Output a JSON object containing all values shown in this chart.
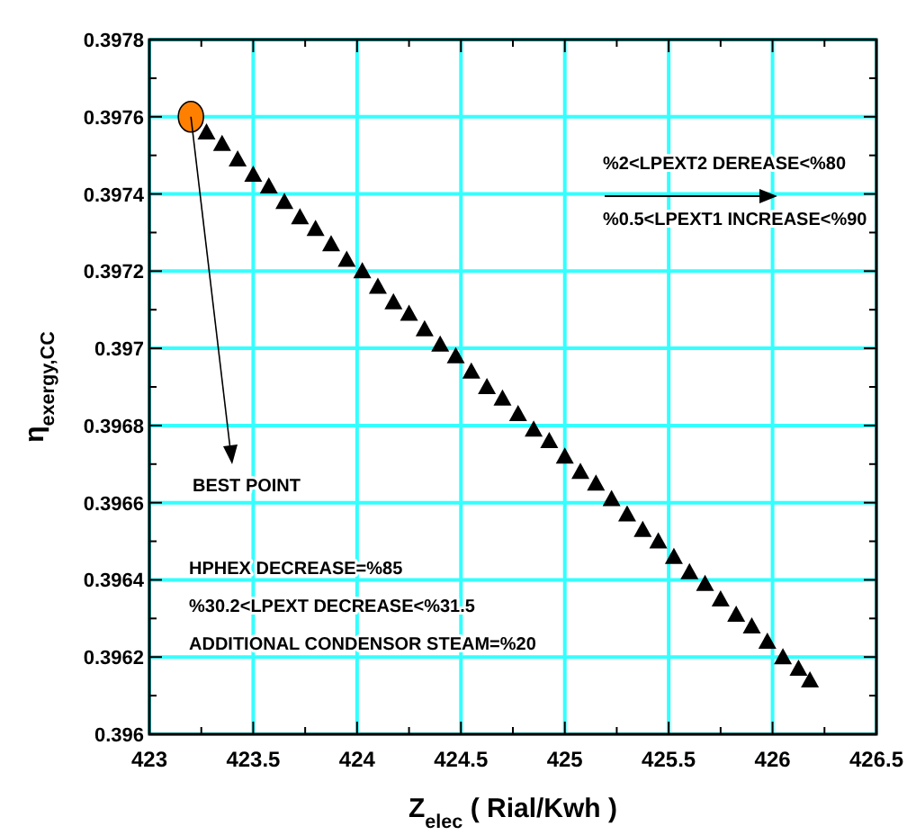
{
  "chart_data": {
    "type": "scatter",
    "xlabel": "Z$_{elec}$ ( Rial/Kwh )",
    "ylabel": "η$_{exergy,CC}$",
    "xlim": [
      423,
      426.5
    ],
    "xticks": [
      423,
      {
        "value": 423.25,
        "label": null
      },
      423.5,
      {
        "value": 423.75,
        "label": null
      },
      424,
      {
        "value": 424.25,
        "label": null
      },
      424.5,
      {
        "value": 424.75,
        "label": null
      },
      425,
      {
        "value": 425.25,
        "label": null
      },
      425.5,
      {
        "value": 425.75,
        "label": null
      },
      426,
      {
        "value": 426.25,
        "label": null
      },
      426.5
    ],
    "ylim": [
      0.396,
      0.3978
    ],
    "yticks": [
      0.396,
      {
        "value": 0.3961,
        "label": null
      },
      0.3962,
      {
        "value": 0.3963,
        "label": null
      },
      0.3964,
      {
        "value": 0.3965,
        "label": null
      },
      0.3966,
      {
        "value": 0.3967,
        "label": null
      },
      0.3968,
      {
        "value": 0.3969,
        "label": null
      },
      0.397,
      {
        "value": 0.3971,
        "label": null
      },
      0.3972,
      {
        "value": 0.3973,
        "label": null
      },
      0.3974,
      {
        "value": 0.3975,
        "label": null
      },
      0.3976,
      {
        "value": 0.3977,
        "label": null
      },
      0.3978
    ],
    "grid": true,
    "series": [
      {
        "color": "#000000",
        "marker": "triangle",
        "x": [
          423.275,
          423.35,
          423.425,
          423.5,
          423.575,
          423.65,
          423.725,
          423.8,
          423.875,
          423.95,
          424.025,
          424.1,
          424.175,
          424.25,
          424.325,
          424.4,
          424.475,
          424.55,
          424.625,
          424.7,
          424.775,
          424.85,
          424.925,
          425,
          425.075,
          425.15,
          425.225,
          425.3,
          425.375,
          425.45,
          425.525,
          425.6,
          425.675,
          425.75,
          425.825,
          425.9,
          425.975,
          426.05,
          426.125,
          426.18
        ],
        "values": [
          0.39756,
          0.39753,
          0.39749,
          0.39745,
          0.39742,
          0.39738,
          0.39734,
          0.39731,
          0.39727,
          0.39723,
          0.3972,
          0.39716,
          0.39712,
          0.39709,
          0.39705,
          0.39701,
          0.39698,
          0.39694,
          0.3969,
          0.39687,
          0.39683,
          0.39679,
          0.39676,
          0.39672,
          0.39668,
          0.39665,
          0.39661,
          0.39657,
          0.39653,
          0.3965,
          0.39646,
          0.39642,
          0.39639,
          0.39635,
          0.39631,
          0.39628,
          0.39624,
          0.3962,
          0.39617,
          0.39614
        ]
      },
      {
        "color": "#ff8000",
        "marker": "circle",
        "x": [
          423.2
        ],
        "values": [
          0.3976
        ]
      }
    ],
    "annotations": [
      "BEST POINT",
      "%2<LPEXT2 DEREASE<%80",
      "%0.5<LPEXT1 INCREASE<%90",
      "HPHEX DECREASE=%85",
      "%30.2<LPEXT DECREASE<%31.5",
      "ADDITIONAL CONDENSOR STEAM=%20"
    ]
  }
}
